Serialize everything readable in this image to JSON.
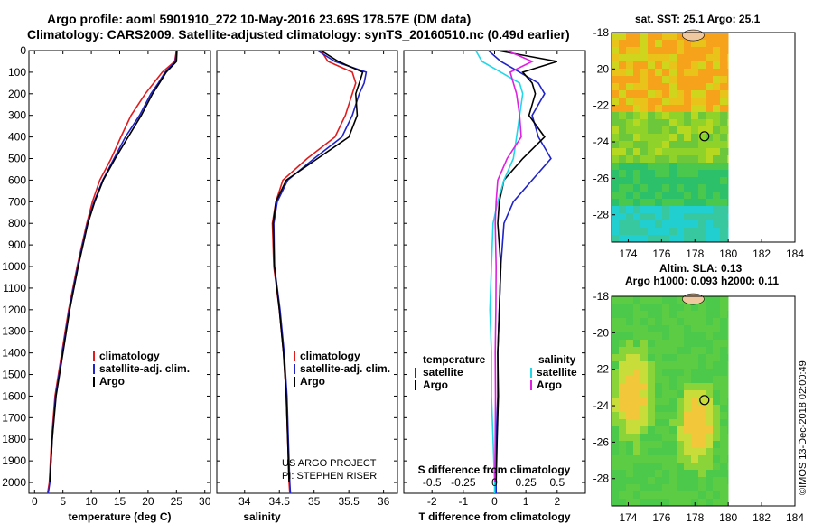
{
  "header": {
    "title1": "Argo profile: aoml 5901910_272 10-May-2016 23.69S 178.57E (DM data)",
    "title2": "Climatology: CARS2009. Satellite-adjusted climatology: synTS_20160510.nc (0.49d earlier)"
  },
  "credit": {
    "project": "US ARGO PROJECT",
    "pi": "PI: STEPHEN RISER",
    "imos": "©IMOS 13-Dec-2018 02:00:49"
  },
  "colors": {
    "climatology": "#e31a1c",
    "satellite": "#1f23c8",
    "argo": "#000000",
    "sat_salinity": "#22d8e8",
    "argo_salinity": "#e020e0",
    "land": "#f0c8a0"
  },
  "chart_data": [
    {
      "type": "line",
      "id": "temperature",
      "xlabel": "temperature (deg C)",
      "xlim": [
        -1,
        31
      ],
      "xticks": [
        0,
        5,
        10,
        15,
        20,
        25,
        30
      ],
      "ylim": [
        0,
        2050
      ],
      "yticks": [
        0,
        100,
        200,
        300,
        400,
        500,
        600,
        700,
        800,
        900,
        1000,
        1100,
        1200,
        1300,
        1400,
        1500,
        1600,
        1700,
        1800,
        1900,
        2000
      ],
      "legend": [
        "climatology",
        "satellite-adj. clim.",
        "Argo"
      ],
      "series": [
        {
          "name": "climatology",
          "color": "climatology",
          "x": [
            25,
            24.7,
            22.5,
            21,
            19.5,
            17,
            15.2,
            13.5,
            11.5,
            10.2,
            9.2,
            7.5,
            6,
            4.8,
            3.6,
            3.0,
            2.6,
            2.3
          ],
          "y": [
            0,
            50,
            100,
            150,
            200,
            300,
            400,
            500,
            600,
            700,
            800,
            1000,
            1200,
            1400,
            1600,
            1800,
            2000,
            2050
          ]
        },
        {
          "name": "satellite-adj. clim.",
          "color": "satellite",
          "x": [
            25,
            24.8,
            23,
            21.8,
            20.5,
            18.5,
            16,
            14,
            12,
            10.5,
            9.3,
            7.6,
            6.1,
            4.9,
            3.7,
            3.1,
            2.7,
            2.4
          ],
          "y": [
            0,
            50,
            100,
            150,
            200,
            300,
            400,
            500,
            600,
            700,
            800,
            1000,
            1200,
            1400,
            1600,
            1800,
            2000,
            2050
          ]
        },
        {
          "name": "Argo",
          "color": "argo",
          "x": [
            25.1,
            25.0,
            23.2,
            22,
            20.8,
            18.8,
            16.5,
            14.2,
            12.1,
            10.6,
            9.4,
            7.7,
            6.2,
            5.0,
            3.8,
            3.1,
            2.7
          ],
          "y": [
            0,
            50,
            100,
            150,
            200,
            300,
            400,
            500,
            600,
            700,
            800,
            1000,
            1200,
            1400,
            1600,
            1800,
            2000
          ]
        }
      ]
    },
    {
      "type": "line",
      "id": "salinity",
      "xlabel": "salinity",
      "xlim": [
        33.6,
        36.2
      ],
      "xticks": [
        34,
        34.5,
        35,
        35.5,
        36
      ],
      "ylim": [
        0,
        2050
      ],
      "legend": [
        "climatology",
        "satellite-adj. clim.",
        "Argo"
      ],
      "series": [
        {
          "name": "climatology",
          "color": "climatology",
          "x": [
            35.1,
            35.2,
            35.55,
            35.6,
            35.55,
            35.45,
            35.3,
            34.9,
            34.55,
            34.45,
            34.4,
            34.42,
            34.5,
            34.56,
            34.6,
            34.62,
            34.64,
            34.65
          ],
          "y": [
            0,
            50,
            100,
            150,
            200,
            300,
            400,
            500,
            600,
            700,
            800,
            1000,
            1200,
            1400,
            1600,
            1800,
            2000,
            2050
          ]
        },
        {
          "name": "satellite-adj. clim.",
          "color": "satellite",
          "x": [
            35.05,
            35.3,
            35.75,
            35.72,
            35.65,
            35.55,
            35.4,
            35.0,
            34.62,
            34.47,
            34.42,
            34.43,
            34.51,
            34.57,
            34.61,
            34.63,
            34.65,
            34.66
          ],
          "y": [
            0,
            50,
            100,
            150,
            200,
            300,
            400,
            500,
            600,
            700,
            800,
            1000,
            1200,
            1400,
            1600,
            1800,
            2000,
            2050
          ]
        },
        {
          "name": "Argo",
          "color": "argo",
          "x": [
            35.1,
            35.35,
            35.7,
            35.65,
            35.6,
            35.62,
            35.5,
            35.05,
            34.6,
            34.45,
            34.41,
            34.43,
            34.5,
            34.56,
            34.6,
            34.62,
            34.64
          ],
          "y": [
            0,
            50,
            100,
            150,
            200,
            300,
            400,
            500,
            600,
            700,
            800,
            1000,
            1200,
            1400,
            1600,
            1800,
            2000
          ]
        }
      ]
    },
    {
      "type": "line",
      "id": "difference",
      "xlabel": "T difference from climatology",
      "xlabel_top": "S difference from climatology",
      "xlim": [
        -2.9,
        2.9
      ],
      "xticks": [
        -2,
        -1,
        0,
        1,
        2
      ],
      "s_ticks": [
        "-0.5",
        "-0.25",
        "0",
        "0.25",
        "0.5"
      ],
      "s_tick_positions": [
        -2,
        -1,
        0,
        1,
        2
      ],
      "ylim": [
        0,
        2050
      ],
      "legend_t_title": "temperature",
      "legend_s_title": "salinity",
      "legend_t": [
        "satellite",
        "Argo"
      ],
      "legend_s": [
        "satellite",
        "Argo"
      ],
      "series": [
        {
          "name": "T satellite",
          "color": "satellite",
          "x": [
            -0.2,
            0.2,
            0.8,
            1.4,
            1.6,
            1.2,
            1.4,
            1.8,
            1.2,
            0.6,
            0.3,
            0.2,
            0.15,
            0.1,
            0.1,
            0.05,
            0.05,
            0.05
          ],
          "y": [
            0,
            50,
            100,
            150,
            200,
            300,
            400,
            500,
            600,
            700,
            800,
            1000,
            1200,
            1400,
            1600,
            1800,
            2000,
            2050
          ]
        },
        {
          "name": "T Argo",
          "color": "argo",
          "x": [
            0.1,
            2.0,
            0.9,
            1.2,
            1.3,
            1.1,
            1.6,
            0.9,
            0.3,
            0.15,
            0.1,
            0.2,
            0.15,
            0.1,
            0.12,
            0.08,
            0.05
          ],
          "y": [
            0,
            50,
            100,
            150,
            200,
            300,
            400,
            500,
            600,
            700,
            800,
            1000,
            1200,
            1400,
            1600,
            1800,
            2000
          ]
        },
        {
          "name": "S satellite",
          "color": "sat_salinity",
          "x": [
            -0.6,
            -0.4,
            0.2,
            0.8,
            0.9,
            0.8,
            0.7,
            0.6,
            0.3,
            0.1,
            -0.05,
            -0.1,
            -0.15,
            -0.1,
            -0.1,
            -0.05,
            0.0,
            0.0
          ],
          "y": [
            0,
            50,
            100,
            150,
            200,
            300,
            400,
            500,
            600,
            700,
            800,
            1000,
            1200,
            1400,
            1600,
            1800,
            2000,
            2050
          ]
        },
        {
          "name": "S Argo",
          "color": "argo_salinity",
          "x": [
            0.4,
            1.2,
            0.5,
            0.6,
            0.7,
            0.8,
            0.85,
            0.4,
            0.1,
            0.05,
            0.02,
            0.05,
            0.04,
            0.02,
            0.03,
            0.02,
            0.01
          ],
          "y": [
            0,
            50,
            100,
            150,
            200,
            300,
            400,
            500,
            600,
            700,
            800,
            1000,
            1200,
            1400,
            1600,
            1800,
            2000
          ]
        }
      ]
    },
    {
      "type": "heatmap",
      "id": "sst_map",
      "title": "sat. SST: 25.1 Argo: 25.1",
      "xlim": [
        173,
        184
      ],
      "ylim": [
        -29.5,
        -18
      ],
      "xticks": [
        174,
        176,
        178,
        180,
        182,
        184
      ],
      "yticks": [
        -18,
        -20,
        -22,
        -24,
        -26,
        -28
      ],
      "data_extent": [
        173,
        180
      ],
      "argo_position": [
        178.57,
        -23.69
      ]
    },
    {
      "type": "heatmap",
      "id": "sla_map",
      "title1": "Altim. SLA: 0.13",
      "title2": "Argo h1000: 0.093 h2000: 0.11",
      "xlim": [
        173,
        184
      ],
      "ylim": [
        -29.5,
        -18
      ],
      "xticks": [
        174,
        176,
        178,
        180,
        182,
        184
      ],
      "yticks": [
        -18,
        -20,
        -22,
        -24,
        -26,
        -28
      ],
      "data_extent": [
        173,
        180
      ],
      "argo_position": [
        178.57,
        -23.69
      ]
    }
  ]
}
